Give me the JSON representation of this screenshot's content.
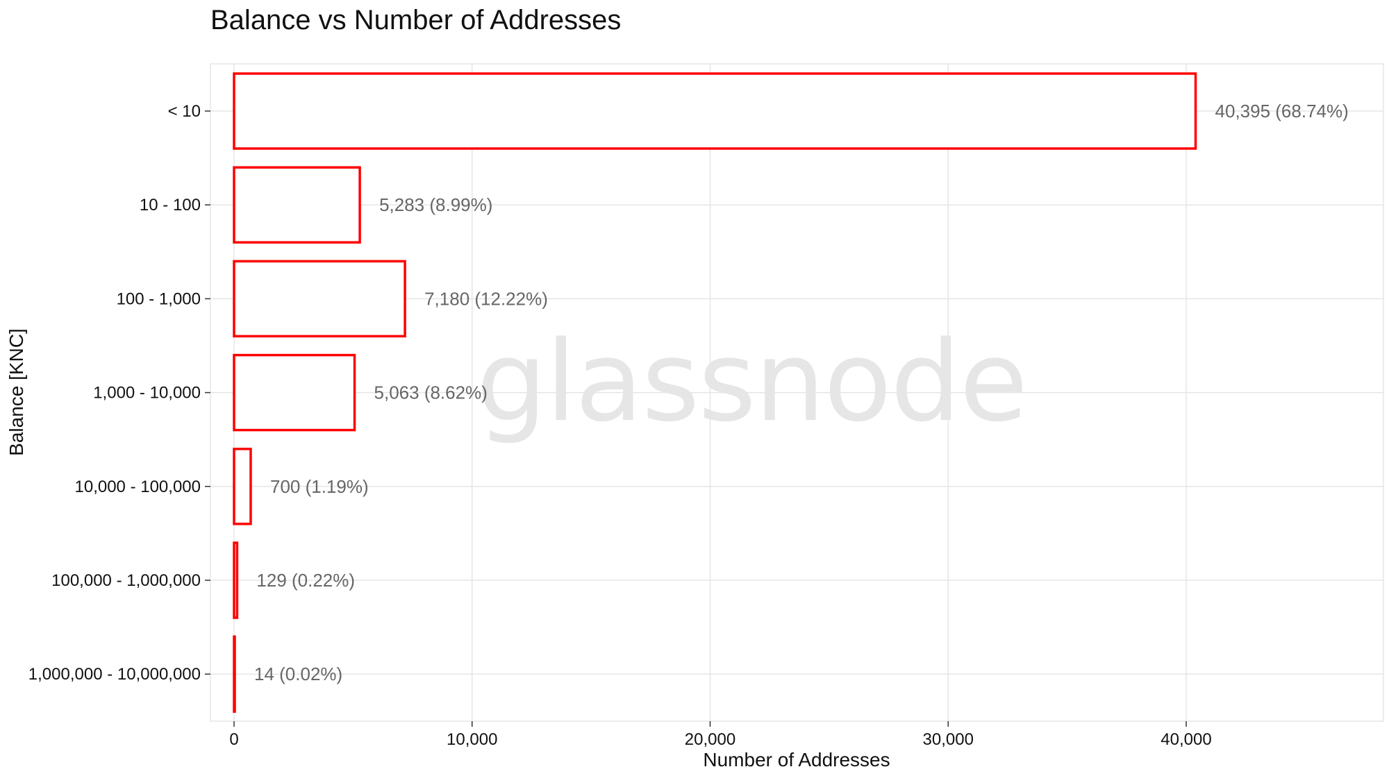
{
  "chart_data": {
    "type": "bar",
    "orientation": "horizontal",
    "title": "Balance vs Number of Addresses",
    "xlabel": "Number of Addresses",
    "ylabel": "Balance [KNC]",
    "watermark": "glassnode",
    "categories": [
      "< 10",
      "10 - 100",
      "100 - 1,000",
      "1,000 - 10,000",
      "10,000 - 100,000",
      "100,000 - 1,000,000",
      "1,000,000 - 10,000,000"
    ],
    "values": [
      40395,
      5283,
      7180,
      5063,
      700,
      129,
      14
    ],
    "data_labels": [
      "40,395 (68.74%)",
      "5,283 (8.99%)",
      "7,180 (12.22%)",
      "5,063 (8.62%)",
      "700 (1.19%)",
      "129 (0.22%)",
      "14 (0.02%)"
    ],
    "xlim": [
      0,
      47000
    ],
    "x_ticks": [
      0,
      10000,
      20000,
      30000,
      40000
    ],
    "x_tick_labels": [
      "0",
      "10,000",
      "20,000",
      "30,000",
      "40,000"
    ],
    "bar_outline_color": "#ff0000",
    "bar_fill_color": "#ffffff",
    "grid": true,
    "grid_color": "#e5e5e5",
    "legend": "none"
  }
}
